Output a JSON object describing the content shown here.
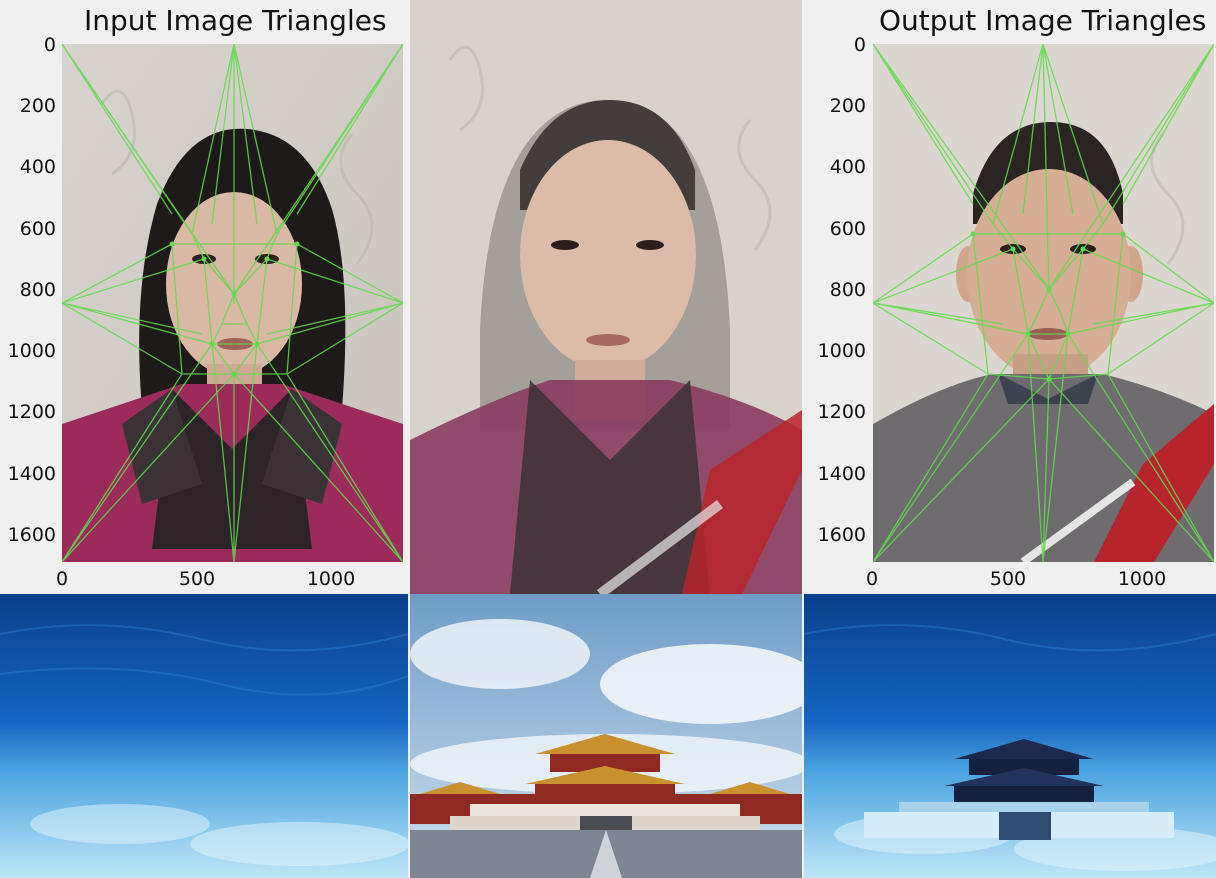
{
  "left_plot": {
    "title": "Input Image Triangles",
    "y_ticks": [
      "0",
      "200",
      "400",
      "600",
      "800",
      "1000",
      "1200",
      "1400",
      "1600"
    ],
    "x_ticks": [
      "0",
      "500",
      "1000"
    ]
  },
  "right_plot": {
    "title": "Output Image Triangles",
    "y_ticks": [
      "0",
      "200",
      "400",
      "600",
      "800",
      "1000",
      "1200",
      "1400",
      "1600"
    ],
    "x_ticks": [
      "0",
      "500",
      "1000"
    ]
  },
  "colors": {
    "mesh_line": "#5fdc4a",
    "background": "#f0f0f0"
  }
}
